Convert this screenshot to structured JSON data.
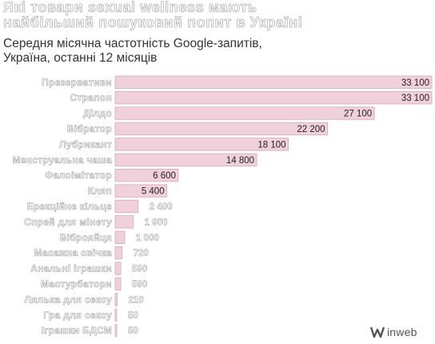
{
  "title": "Які товари sexual wellness мають\nнайбільший пошуковий попит в Україні",
  "subtitle": "Середня місячна частотність Google-запитів,\nУкраїна, останні 12 місяців",
  "brand": {
    "name": "inweb",
    "mark_icon": "inweb-logo-icon"
  },
  "colors": {
    "bar": "#efd0db",
    "bar_border": "#d9a8ba",
    "label_outline": "#9a9a9a"
  },
  "chart_data": {
    "type": "bar",
    "orientation": "horizontal",
    "title": "Які товари sexual wellness мають найбільший пошуковий попит в Україні",
    "subtitle": "Середня місячна частотність Google-запитів, Україна, останні 12 місяців",
    "categories": [
      "Презервативи",
      "Страпон",
      "Ділдо",
      "Вібратор",
      "Лубрикант",
      "Менструальна чаша",
      "Фалоімітатор",
      "Кляп",
      "Ерекційне кільце",
      "Спрей для мінету",
      "Віброяйця",
      "Масажна свічка",
      "Анальні іграшки",
      "Мастурбатори",
      "Лялька для сексу",
      "Гра для сексу",
      "Іграшки БДСМ"
    ],
    "values": [
      33100,
      33100,
      27100,
      22200,
      18100,
      14800,
      6600,
      5400,
      2400,
      1900,
      1000,
      720,
      590,
      590,
      210,
      50,
      50
    ],
    "value_labels": [
      "33 100",
      "33 100",
      "27 100",
      "22 200",
      "18 100",
      "14 800",
      "6 600",
      "5 400",
      "2 400",
      "1 900",
      "1 000",
      "720",
      "590",
      "590",
      "210",
      "50",
      "50"
    ],
    "xlim": [
      0,
      33100
    ],
    "grid": false,
    "legend": "none"
  }
}
